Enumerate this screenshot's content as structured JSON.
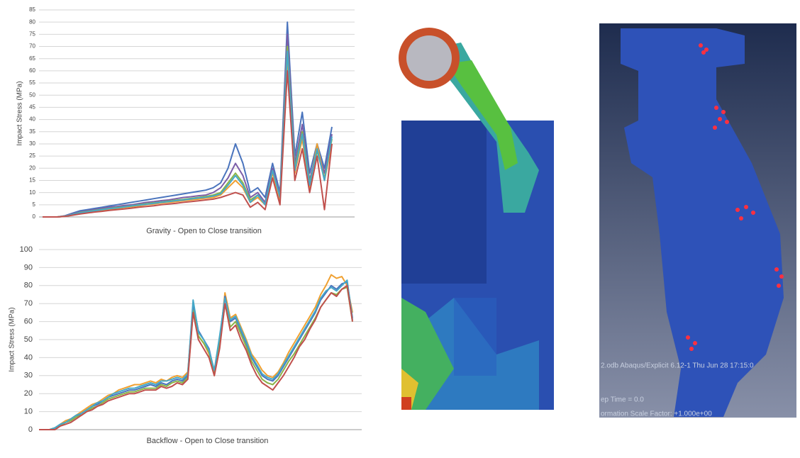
{
  "chart_data": [
    {
      "type": "line",
      "title": "Gravity - Open to Close transition",
      "y_label": "Impact Stress (MPa)",
      "categories": [
        null,
        null,
        null,
        null,
        null,
        null,
        null,
        null,
        null,
        null,
        null,
        null,
        null,
        null,
        null,
        null,
        null,
        null,
        null,
        null,
        null,
        null,
        null,
        null,
        null,
        null,
        null,
        null,
        null,
        null,
        null,
        null,
        null,
        null,
        null,
        null,
        null,
        null,
        null,
        null
      ],
      "ylim": [
        0,
        85
      ],
      "yticks": [
        0,
        5,
        10,
        15,
        20,
        25,
        30,
        35,
        40,
        45,
        50,
        55,
        60,
        65,
        70,
        75,
        80,
        85
      ],
      "grid": true,
      "series": [
        {
          "color": "#4a74bd",
          "values": [
            0,
            0,
            0,
            0.5,
            1.5,
            2.5,
            3,
            3.5,
            4,
            4.5,
            5,
            5.5,
            6,
            6.5,
            7,
            7.5,
            8,
            8.5,
            9,
            9.5,
            10,
            10.5,
            11,
            12,
            14,
            20,
            30,
            22,
            10,
            12,
            8,
            22,
            10,
            80,
            25,
            43,
            18,
            30,
            20,
            37
          ]
        },
        {
          "color": "#7b5ea8",
          "values": [
            0,
            0,
            0,
            0.4,
            1.2,
            2,
            2.5,
            3,
            3.5,
            4,
            4.3,
            4.7,
            5,
            5.5,
            6,
            6.3,
            6.7,
            7,
            7.5,
            8,
            8.3,
            8.7,
            9,
            10,
            12,
            16,
            22,
            17,
            8,
            10,
            6,
            20,
            9,
            75,
            22,
            38,
            15,
            28,
            18,
            34
          ]
        },
        {
          "color": "#8ab449",
          "values": [
            0,
            0,
            0,
            0.3,
            1,
            1.8,
            2.2,
            2.7,
            3.1,
            3.5,
            3.9,
            4.2,
            4.6,
            5,
            5.4,
            5.8,
            6.1,
            6.5,
            6.9,
            7.2,
            7.6,
            8,
            8.4,
            9,
            10,
            14,
            18,
            14,
            7,
            9,
            5,
            19,
            8,
            70,
            20,
            35,
            14,
            27,
            16,
            32
          ]
        },
        {
          "color": "#f0a030",
          "values": [
            0,
            0,
            0,
            0.3,
            0.9,
            1.6,
            2,
            2.4,
            2.8,
            3.2,
            3.5,
            3.9,
            4.2,
            4.6,
            5,
            5.3,
            5.7,
            6,
            6.3,
            6.7,
            7,
            7.3,
            7.7,
            8,
            9,
            12,
            15,
            12,
            6,
            8,
            5,
            18,
            7,
            65,
            18,
            32,
            12,
            30,
            15,
            30
          ]
        },
        {
          "color": "#45a8c8",
          "values": [
            0,
            0,
            0,
            0.3,
            1,
            1.7,
            2.1,
            2.6,
            3,
            3.4,
            3.7,
            4.1,
            4.5,
            4.9,
            5.2,
            5.6,
            6,
            6.3,
            6.7,
            7,
            7.4,
            7.8,
            8.1,
            8.6,
            9.5,
            13,
            17,
            13,
            6,
            9,
            5,
            19,
            8,
            68,
            19,
            34,
            13,
            28,
            15,
            33
          ]
        },
        {
          "color": "#c0504d",
          "values": [
            0,
            0,
            0,
            0.2,
            0.7,
            1.2,
            1.6,
            2,
            2.3,
            2.7,
            3,
            3.3,
            3.6,
            4,
            4.3,
            4.6,
            5,
            5.3,
            5.6,
            6,
            6.3,
            6.6,
            7,
            7.3,
            8,
            9,
            10,
            9,
            4,
            6,
            3,
            16,
            5,
            60,
            15,
            28,
            10,
            25,
            3,
            30
          ]
        }
      ]
    },
    {
      "type": "line",
      "title": "Backflow - Open to Close transition",
      "y_label": "Impact Stress (MPa)",
      "categories": [
        null,
        null,
        null,
        null,
        null,
        null,
        null,
        null,
        null,
        null,
        null,
        null,
        null,
        null,
        null,
        null,
        null,
        null,
        null,
        null,
        null,
        null,
        null,
        null,
        null,
        null,
        null,
        null,
        null,
        null,
        null,
        null,
        null,
        null,
        null,
        null,
        null,
        null,
        null,
        null,
        null,
        null,
        null,
        null,
        null,
        null,
        null,
        null,
        null,
        null,
        null,
        null,
        null,
        null,
        null,
        null,
        null,
        null,
        null,
        null
      ],
      "ylim": [
        0,
        100
      ],
      "yticks": [
        0,
        10,
        20,
        30,
        40,
        50,
        60,
        70,
        80,
        90,
        100
      ],
      "grid": true,
      "series": [
        {
          "color": "#f0a030",
          "values": [
            0,
            0,
            0,
            1,
            3,
            5,
            6,
            8,
            10,
            12,
            14,
            15,
            17,
            19,
            20,
            22,
            23,
            24,
            25,
            25,
            26,
            27,
            26,
            28,
            27,
            29,
            30,
            29,
            32,
            68,
            52,
            48,
            42,
            30,
            48,
            76,
            62,
            64,
            57,
            50,
            42,
            38,
            33,
            30,
            29,
            32,
            37,
            43,
            48,
            53,
            58,
            63,
            68,
            75,
            80,
            86,
            84,
            85,
            80,
            65
          ]
        },
        {
          "color": "#4a74bd",
          "values": [
            0,
            0,
            0,
            1,
            3,
            4,
            5,
            7,
            9,
            11,
            13,
            14,
            16,
            18,
            19,
            20,
            21,
            22,
            22,
            23,
            24,
            25,
            24,
            26,
            25,
            27,
            28,
            27,
            30,
            70,
            55,
            50,
            45,
            32,
            50,
            74,
            60,
            62,
            55,
            48,
            40,
            35,
            30,
            28,
            27,
            30,
            35,
            40,
            45,
            50,
            55,
            60,
            65,
            72,
            76,
            80,
            78,
            81,
            82,
            62
          ]
        },
        {
          "color": "#8ab449",
          "values": [
            0,
            0,
            0,
            1,
            2,
            4,
            5,
            7,
            8,
            10,
            12,
            13,
            15,
            17,
            18,
            19,
            20,
            21,
            21,
            22,
            23,
            23,
            23,
            25,
            24,
            26,
            27,
            26,
            29,
            66,
            52,
            48,
            43,
            31,
            47,
            70,
            57,
            60,
            53,
            46,
            38,
            33,
            28,
            26,
            25,
            28,
            33,
            38,
            42,
            47,
            52,
            57,
            62,
            68,
            72,
            76,
            75,
            78,
            79,
            60
          ]
        },
        {
          "color": "#45a8c8",
          "values": [
            0,
            0,
            0,
            1,
            3,
            4,
            6,
            8,
            9,
            11,
            13,
            15,
            16,
            18,
            20,
            21,
            22,
            23,
            23,
            24,
            25,
            26,
            25,
            27,
            27,
            28,
            29,
            28,
            31,
            72,
            54,
            50,
            44,
            33,
            52,
            73,
            61,
            63,
            56,
            49,
            41,
            36,
            31,
            29,
            28,
            31,
            36,
            41,
            46,
            51,
            56,
            61,
            66,
            73,
            77,
            79,
            77,
            80,
            83,
            61
          ]
        },
        {
          "color": "#c0504d",
          "values": [
            0,
            0,
            0,
            0,
            2,
            3,
            4,
            6,
            8,
            10,
            11,
            13,
            14,
            16,
            17,
            18,
            19,
            20,
            20,
            21,
            22,
            22,
            22,
            24,
            23,
            24,
            26,
            25,
            28,
            65,
            50,
            45,
            40,
            30,
            45,
            70,
            55,
            58,
            50,
            44,
            36,
            30,
            26,
            24,
            22,
            26,
            30,
            35,
            40,
            46,
            50,
            56,
            61,
            68,
            72,
            76,
            74,
            78,
            80,
            60
          ]
        }
      ]
    }
  ],
  "fea_image": {
    "labels": [
      "2.odb   Abaqus/Explicit 6.12-1    Thu Jun 28 17:15:0",
      "ep Time = 0.0",
      "ormation Scale Factor: +1.000e+00"
    ]
  }
}
